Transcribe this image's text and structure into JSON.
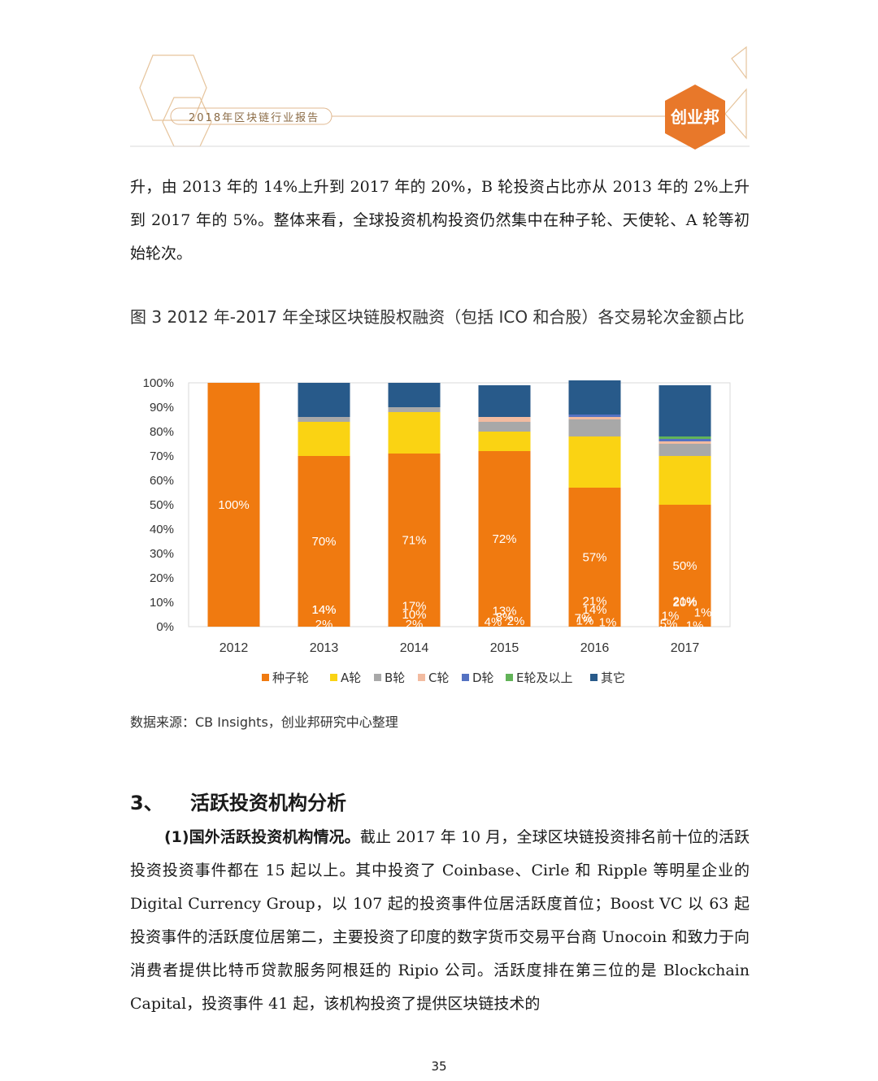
{
  "header": {
    "title": "2018年区块链行业报告",
    "logo": "创业邦"
  },
  "intro_paragraph": "升，由 2013 年的 14%上升到 2017 年的 20%，B 轮投资占比亦从 2013 年的 2%上升到 2017 年的 5%。整体来看，全球投资机构投资仍然集中在种子轮、天使轮、A 轮等初始轮次。",
  "figure_caption": "图 3 2012 年-2017 年全球区块链股权融资（包括 ICO 和合股）各交易轮次金额占比",
  "source": "数据来源：CB Insights，创业邦研究中心整理",
  "section": {
    "number": "3、",
    "title": "活跃投资机构分析"
  },
  "body_lead": "(1)国外活跃投资机构情况。",
  "body_text": "截止 2017 年 10 月，全球区块链投资排名前十位的活跃投资投资事件都在 15 起以上。其中投资了 Coinbase、Cirle 和 Ripple 等明星企业的 Digital Currency Group，以 107 起的投资事件位居活跃度首位；Boost VC 以 63 起投资事件的活跃度位居第二，主要投资了印度的数字货币交易平台商 Unocoin 和致力于向消费者提供比特币贷款服务阿根廷的 Ripio 公司。活跃度排在第三位的是 Blockchain Capital，投资事件 41 起，该机构投资了提供区块链技术的",
  "page_number": "35",
  "chart_data": {
    "type": "bar",
    "stacked": true,
    "categories": [
      "2012",
      "2013",
      "2014",
      "2015",
      "2016",
      "2017"
    ],
    "y_ticks": [
      "0%",
      "10%",
      "20%",
      "30%",
      "40%",
      "50%",
      "60%",
      "70%",
      "80%",
      "90%",
      "100%"
    ],
    "ylim": [
      0,
      100
    ],
    "legend_position": "bottom",
    "series": [
      {
        "name": "种子轮",
        "color": "#f07a10",
        "values": [
          100,
          70,
          71,
          72,
          57,
          50
        ],
        "labels": [
          "100%",
          "70%",
          "71%",
          "72%",
          "57%",
          "50%"
        ]
      },
      {
        "name": "A轮",
        "color": "#fad313",
        "values": [
          0,
          14,
          17,
          8,
          21,
          20
        ],
        "labels": [
          "",
          "14%",
          "17%",
          "8%",
          "21%",
          "20%"
        ]
      },
      {
        "name": "B轮",
        "color": "#a8a8a8",
        "values": [
          0,
          2,
          2,
          4,
          7,
          5
        ],
        "labels": [
          "",
          "2%",
          "2%",
          "4%",
          "7%",
          "5%"
        ]
      },
      {
        "name": "C轮",
        "color": "#f2bba0",
        "values": [
          0,
          0,
          0,
          2,
          1,
          1
        ],
        "labels": [
          "",
          "",
          "",
          "2%",
          "1%",
          "1%"
        ]
      },
      {
        "name": "D轮",
        "color": "#5472c2",
        "values": [
          0,
          0,
          0,
          0,
          1,
          1
        ],
        "labels": [
          "",
          "",
          "",
          "",
          "1%",
          "1%"
        ]
      },
      {
        "name": "E轮及以上",
        "color": "#62b358",
        "values": [
          0,
          0,
          0,
          0,
          0,
          1
        ],
        "labels": [
          "",
          "",
          "",
          "",
          "",
          "1%"
        ]
      },
      {
        "name": "其它",
        "color": "#285a8a",
        "values": [
          0,
          14,
          10,
          13,
          14,
          21
        ],
        "labels": [
          "",
          "14%",
          "10%",
          "13%",
          "14%",
          "21%"
        ]
      }
    ]
  }
}
